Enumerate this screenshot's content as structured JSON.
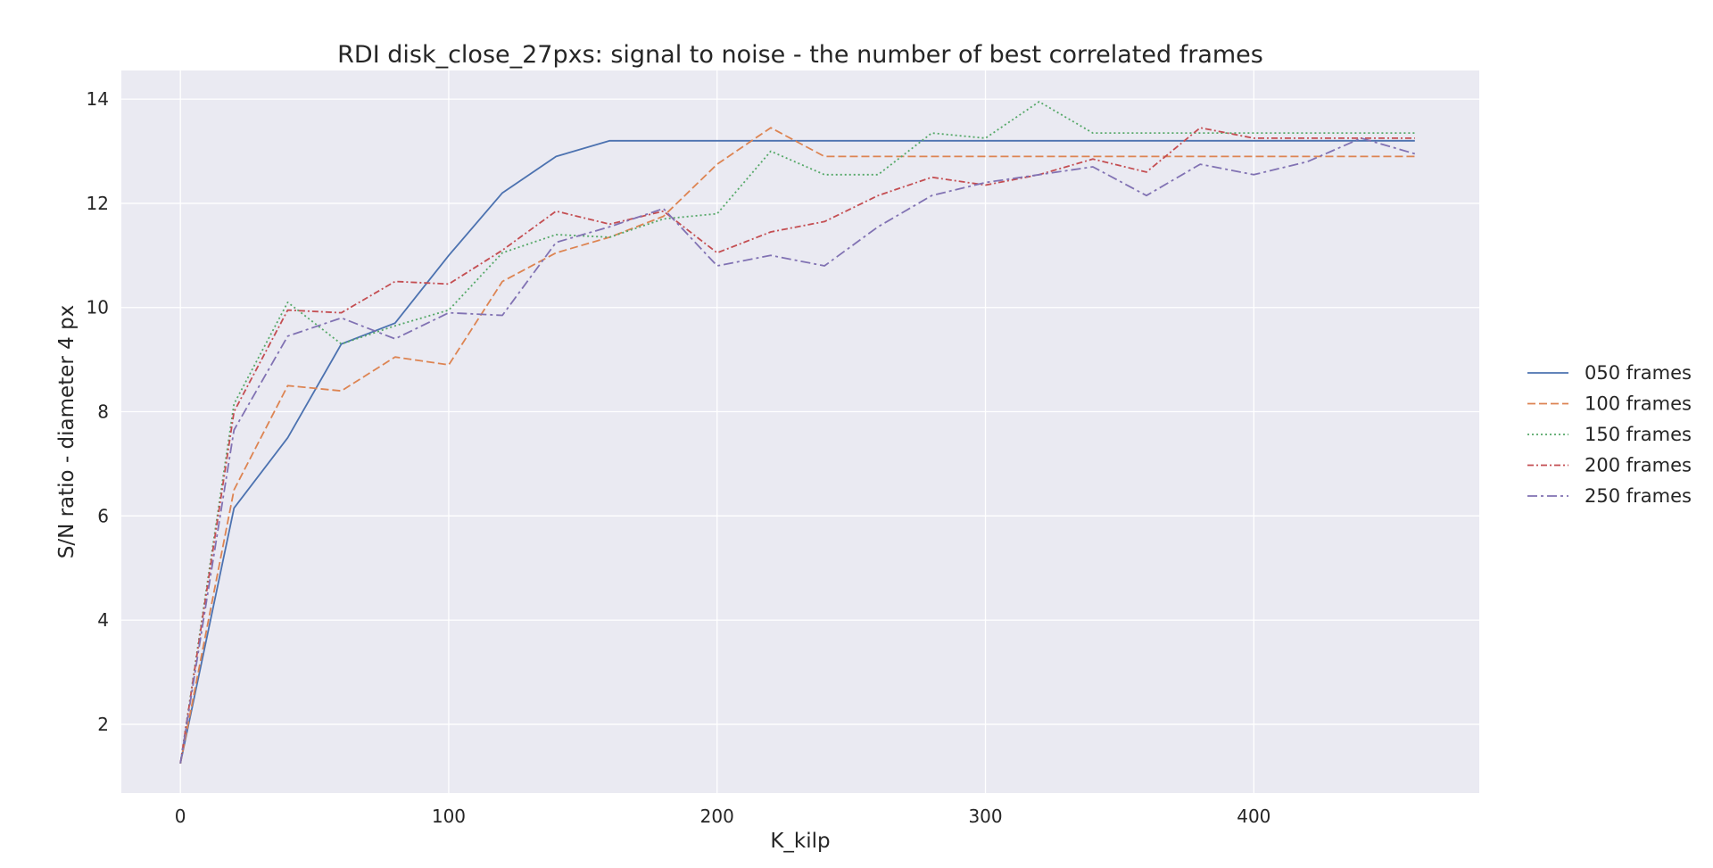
{
  "chart_data": {
    "type": "line",
    "title": "RDI disk_close_27pxs: signal to noise - the number of best correlated frames",
    "xlabel": "K_kilp",
    "ylabel": "S/N ratio - diameter 4 px",
    "xlim": [
      -22,
      484
    ],
    "ylim": [
      0.68,
      14.55
    ],
    "xticks": [
      0,
      100,
      200,
      300,
      400
    ],
    "yticks": [
      2,
      4,
      6,
      8,
      10,
      12,
      14
    ],
    "grid": true,
    "legend_position": "right",
    "x": [
      0,
      20,
      40,
      60,
      80,
      100,
      120,
      140,
      160,
      180,
      200,
      220,
      240,
      260,
      280,
      300,
      320,
      340,
      360,
      380,
      400,
      420,
      440,
      460
    ],
    "series": [
      {
        "name": "050 frames",
        "color": "#4c72b0",
        "dash": "",
        "values": [
          1.25,
          6.15,
          7.5,
          9.3,
          9.7,
          11.0,
          12.2,
          12.9,
          13.2,
          13.2,
          13.2,
          13.2,
          13.2,
          13.2,
          13.2,
          13.2,
          13.2,
          13.2,
          13.2,
          13.2,
          13.2,
          13.2,
          13.2,
          13.2
        ]
      },
      {
        "name": "100 frames",
        "color": "#dd8452",
        "dash": "9,4",
        "values": [
          1.25,
          6.5,
          8.5,
          8.4,
          9.05,
          8.9,
          10.5,
          11.05,
          11.35,
          11.75,
          12.75,
          13.45,
          12.9,
          12.9,
          12.9,
          12.9,
          12.9,
          12.9,
          12.9,
          12.9,
          12.9,
          12.9,
          12.9,
          12.9
        ]
      },
      {
        "name": "150 frames",
        "color": "#55a868",
        "dash": "2,3",
        "values": [
          1.25,
          8.15,
          10.1,
          9.3,
          9.65,
          9.95,
          11.05,
          11.4,
          11.35,
          11.7,
          11.8,
          13.0,
          12.55,
          12.55,
          13.35,
          13.25,
          13.95,
          13.35,
          13.35,
          13.35,
          13.35,
          13.35,
          13.35,
          13.35
        ]
      },
      {
        "name": "200 frames",
        "color": "#c44e52",
        "dash": "7,3,2,3",
        "values": [
          1.25,
          8.0,
          9.95,
          9.9,
          10.5,
          10.45,
          11.1,
          11.85,
          11.6,
          11.85,
          11.05,
          11.45,
          11.65,
          12.15,
          12.5,
          12.35,
          12.55,
          12.85,
          12.6,
          13.45,
          13.25,
          13.25,
          13.25,
          13.25
        ]
      },
      {
        "name": "250 frames",
        "color": "#8172b3",
        "dash": "11,4,3,4",
        "values": [
          1.25,
          7.65,
          9.45,
          9.8,
          9.4,
          9.9,
          9.85,
          11.25,
          11.55,
          11.9,
          10.8,
          11.0,
          10.8,
          11.55,
          12.15,
          12.4,
          12.55,
          12.7,
          12.15,
          12.75,
          12.55,
          12.8,
          13.25,
          12.95
        ]
      }
    ]
  }
}
